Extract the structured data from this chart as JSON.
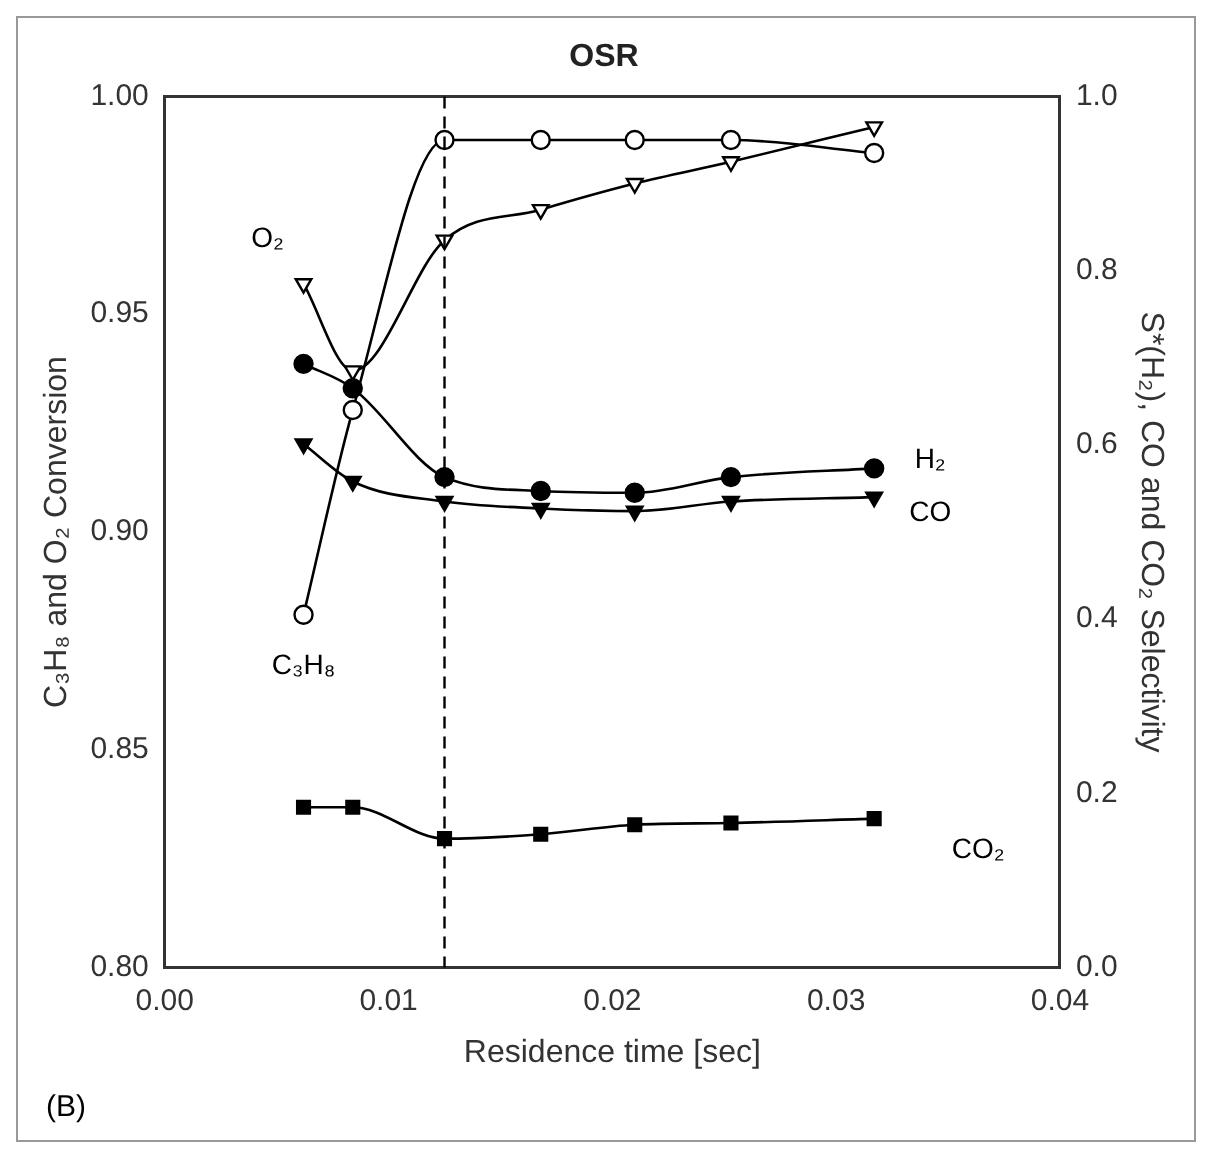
{
  "chart_data": {
    "type": "line",
    "title": "OSR",
    "xlabel": "Residence time [sec]",
    "ylabel": "C₃H₈ and O₂ Conversion",
    "y2label": "S*(H₂), CO and CO₂ Selectivity",
    "x": [
      0.0062,
      0.0084,
      0.0125,
      0.0168,
      0.021,
      0.0253,
      0.0317
    ],
    "series": [
      {
        "name": "O₂",
        "color": "#000000",
        "marker": "triangle",
        "values": [
          0.957,
          0.937,
          0.967,
          0.974,
          0.98,
          0.985,
          0.993
        ]
      },
      {
        "name": "C₃H₈",
        "color": "#000000",
        "marker": "circle",
        "values": [
          0.881,
          0.928,
          0.99,
          0.99,
          0.99,
          0.99,
          0.987
        ]
      },
      {
        "name": "H₂",
        "color": "#000000",
        "marker": "circle",
        "axis": "y2",
        "values": [
          0.693,
          0.665,
          0.563,
          0.547,
          0.545,
          0.563,
          0.573
        ]
      },
      {
        "name": "CO",
        "color": "#000000",
        "marker": "triangle",
        "axis": "y2",
        "values": [
          0.601,
          0.558,
          0.535,
          0.527,
          0.524,
          0.535,
          0.54
        ]
      },
      {
        "name": "CO₂",
        "color": "#000000",
        "marker": "square",
        "axis": "y2",
        "values": [
          0.184,
          0.184,
          0.148,
          0.153,
          0.164,
          0.166,
          0.171
        ]
      }
    ],
    "xlim": [
      0,
      0.04
    ],
    "xticks": [
      {
        "value": 0,
        "label": "0.00"
      },
      0.01,
      0.02,
      0.03,
      {
        "value": 0.04,
        "label": "0.04"
      }
    ],
    "ylim": [
      0.8,
      1.0
    ],
    "yticks": [
      {
        "value": 0.8,
        "label": "0.80"
      },
      0.85,
      {
        "value": 0.9,
        "label": "0.90"
      },
      0.95,
      {
        "value": 1.0,
        "label": "1.00"
      }
    ],
    "y2lim": [
      0,
      1
    ],
    "y2ticks": [
      {
        "value": 0,
        "label": "0.0"
      },
      0.2,
      0.4,
      0.6,
      0.8,
      {
        "value": 1,
        "label": "1.0"
      }
    ],
    "ref_lines": [
      {
        "axis": "x",
        "value": 0.0125,
        "line_style": "dashed",
        "color": "#000000"
      }
    ],
    "annotations": [
      "(B)"
    ],
    "legend": false,
    "grid": false
  }
}
